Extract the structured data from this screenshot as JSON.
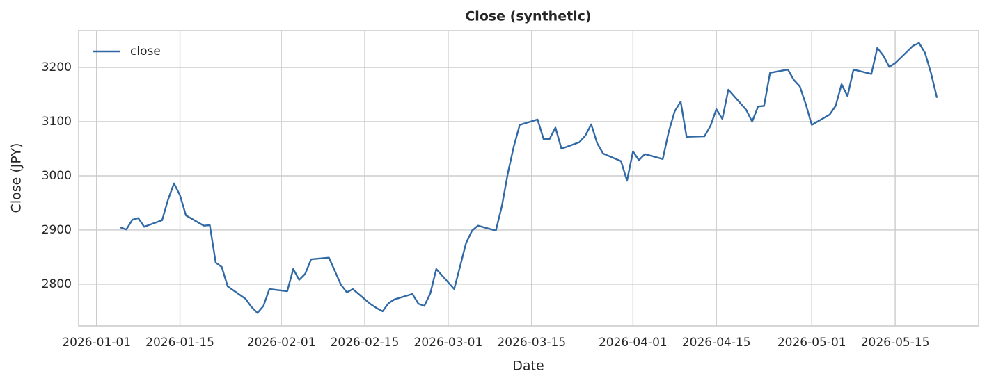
{
  "chart_data": {
    "type": "line",
    "title": "Close (synthetic)",
    "xlabel": "Date",
    "ylabel": "Close (JPY)",
    "x": [
      "2026-01-05",
      "2026-01-06",
      "2026-01-07",
      "2026-01-08",
      "2026-01-09",
      "2026-01-12",
      "2026-01-13",
      "2026-01-14",
      "2026-01-15",
      "2026-01-16",
      "2026-01-19",
      "2026-01-20",
      "2026-01-21",
      "2026-01-22",
      "2026-01-23",
      "2026-01-26",
      "2026-01-27",
      "2026-01-28",
      "2026-01-29",
      "2026-01-30",
      "2026-02-02",
      "2026-02-03",
      "2026-02-04",
      "2026-02-05",
      "2026-02-06",
      "2026-02-09",
      "2026-02-10",
      "2026-02-11",
      "2026-02-12",
      "2026-02-13",
      "2026-02-16",
      "2026-02-17",
      "2026-02-18",
      "2026-02-19",
      "2026-02-20",
      "2026-02-23",
      "2026-02-24",
      "2026-02-25",
      "2026-02-26",
      "2026-02-27",
      "2026-03-02",
      "2026-03-03",
      "2026-03-04",
      "2026-03-05",
      "2026-03-06",
      "2026-03-09",
      "2026-03-10",
      "2026-03-11",
      "2026-03-12",
      "2026-03-13",
      "2026-03-16",
      "2026-03-17",
      "2026-03-18",
      "2026-03-19",
      "2026-03-20",
      "2026-03-23",
      "2026-03-24",
      "2026-03-25",
      "2026-03-26",
      "2026-03-27",
      "2026-03-30",
      "2026-03-31",
      "2026-04-01",
      "2026-04-02",
      "2026-04-03",
      "2026-04-06",
      "2026-04-07",
      "2026-04-08",
      "2026-04-09",
      "2026-04-10",
      "2026-04-13",
      "2026-04-14",
      "2026-04-15",
      "2026-04-16",
      "2026-04-17",
      "2026-04-20",
      "2026-04-21",
      "2026-04-22",
      "2026-04-23",
      "2026-04-24",
      "2026-04-27",
      "2026-04-28",
      "2026-04-29",
      "2026-04-30",
      "2026-05-01",
      "2026-05-04",
      "2026-05-05",
      "2026-05-06",
      "2026-05-07",
      "2026-05-08",
      "2026-05-11",
      "2026-05-12",
      "2026-05-13",
      "2026-05-14",
      "2026-05-15",
      "2026-05-18",
      "2026-05-19",
      "2026-05-20",
      "2026-05-21",
      "2026-05-22"
    ],
    "series": [
      {
        "name": "close",
        "color": "#3069a5",
        "values": [
          2905,
          2901,
          2919,
          2922,
          2906,
          2918,
          2956,
          2986,
          2964,
          2927,
          2908,
          2909,
          2840,
          2832,
          2796,
          2773,
          2758,
          2747,
          2760,
          2791,
          2787,
          2828,
          2808,
          2819,
          2846,
          2849,
          2824,
          2799,
          2785,
          2791,
          2763,
          2756,
          2750,
          2765,
          2772,
          2782,
          2764,
          2760,
          2783,
          2828,
          2791,
          2833,
          2876,
          2899,
          2908,
          2899,
          2944,
          3004,
          3054,
          3094,
          3104,
          3068,
          3068,
          3089,
          3050,
          3062,
          3074,
          3095,
          3060,
          3041,
          3027,
          2991,
          3045,
          3029,
          3040,
          3031,
          3081,
          3119,
          3137,
          3072,
          3073,
          3092,
          3123,
          3105,
          3159,
          3122,
          3100,
          3128,
          3129,
          3190,
          3196,
          3177,
          3165,
          3132,
          3094,
          3113,
          3129,
          3169,
          3147,
          3196,
          3188,
          3236,
          3222,
          3201,
          3208,
          3240,
          3245,
          3227,
          3190,
          3144
        ]
      }
    ],
    "xlim": [
      "2025-12-29",
      "2026-05-29"
    ],
    "xticks": [
      "2026-01-01",
      "2026-01-15",
      "2026-02-01",
      "2026-02-15",
      "2026-03-01",
      "2026-03-15",
      "2026-04-01",
      "2026-04-15",
      "2026-05-01",
      "2026-05-15"
    ],
    "ylim": [
      2723,
      3268
    ],
    "yticks": [
      2800,
      2900,
      3000,
      3100,
      3200
    ],
    "grid": true,
    "legend": "upper left"
  }
}
